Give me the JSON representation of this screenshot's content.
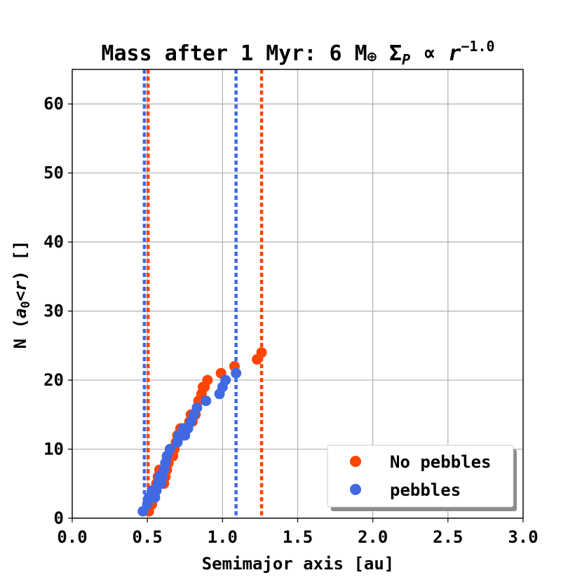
{
  "chart_data": {
    "type": "scatter",
    "title_main": "Mass after 1 Myr: 6 M",
    "title_earth_symbol": "⊕",
    "title_sigma": "Σ",
    "title_sigma_sub": "P",
    "title_propto": "∝",
    "title_r": "r",
    "title_exponent": "−1.0",
    "xlabel": "Semimajor axis [au]",
    "ylabel_prefix": "N (",
    "ylabel_a": "a",
    "ylabel_sub": "0",
    "ylabel_lt": "<",
    "ylabel_r": "r",
    "ylabel_suffix": ") []",
    "xlim": [
      0.0,
      3.0
    ],
    "ylim": [
      0,
      65
    ],
    "xticks": [
      0.0,
      0.5,
      1.0,
      1.5,
      2.0,
      2.5,
      3.0
    ],
    "xtick_labels": [
      "0.0",
      "0.5",
      "1.0",
      "1.5",
      "2.0",
      "2.5",
      "3.0"
    ],
    "yticks": [
      0,
      10,
      20,
      30,
      40,
      50,
      60
    ],
    "ytick_labels": [
      "0",
      "10",
      "20",
      "30",
      "40",
      "50",
      "60"
    ],
    "grid": true,
    "legend_position": "bottom-right",
    "series": [
      {
        "name": "No pebbles",
        "color": "#ff4500",
        "x": [
          0.51,
          0.53,
          0.54,
          0.55,
          0.56,
          0.57,
          0.58,
          0.59,
          0.6,
          0.61,
          0.62,
          0.63,
          0.64,
          0.65,
          0.66,
          0.67,
          0.68,
          0.69,
          0.7,
          0.72,
          0.74,
          0.76,
          0.78,
          0.79,
          0.8,
          0.82,
          0.84,
          0.86,
          0.87,
          0.88,
          0.9,
          0.99,
          1.08,
          1.23,
          1.26
        ],
        "y": [
          1,
          2,
          3,
          4,
          5,
          6,
          7,
          6,
          7,
          5,
          6,
          7,
          8,
          9,
          10,
          9,
          10,
          11,
          12,
          13,
          12,
          13,
          14,
          15,
          14,
          15,
          17,
          18,
          19,
          19,
          20,
          21,
          22,
          23,
          24
        ]
      },
      {
        "name": "pebbles",
        "color": "#4169e1",
        "x": [
          0.47,
          0.5,
          0.51,
          0.53,
          0.55,
          0.56,
          0.57,
          0.58,
          0.59,
          0.6,
          0.61,
          0.62,
          0.63,
          0.65,
          0.7,
          0.71,
          0.73,
          0.74,
          0.75,
          0.77,
          0.79,
          0.81,
          0.83,
          0.89,
          0.98,
          1.0,
          1.02,
          1.09
        ],
        "y": [
          1,
          2,
          3,
          4,
          3,
          4,
          5,
          6,
          5,
          6,
          7,
          8,
          9,
          10,
          11,
          12,
          12,
          13,
          12,
          13,
          14,
          15,
          16,
          17,
          18,
          19,
          20,
          21
        ]
      }
    ],
    "vlines": [
      {
        "series": "pebbles",
        "x": 0.48,
        "color": "#4169e1",
        "style": "dotted"
      },
      {
        "series": "No pebbles",
        "x": 0.505,
        "color": "#ff4500",
        "style": "dotted"
      },
      {
        "series": "pebbles",
        "x": 1.09,
        "color": "#4169e1",
        "style": "dotted"
      },
      {
        "series": "No pebbles",
        "x": 1.26,
        "color": "#ff4500",
        "style": "dotted"
      }
    ]
  }
}
